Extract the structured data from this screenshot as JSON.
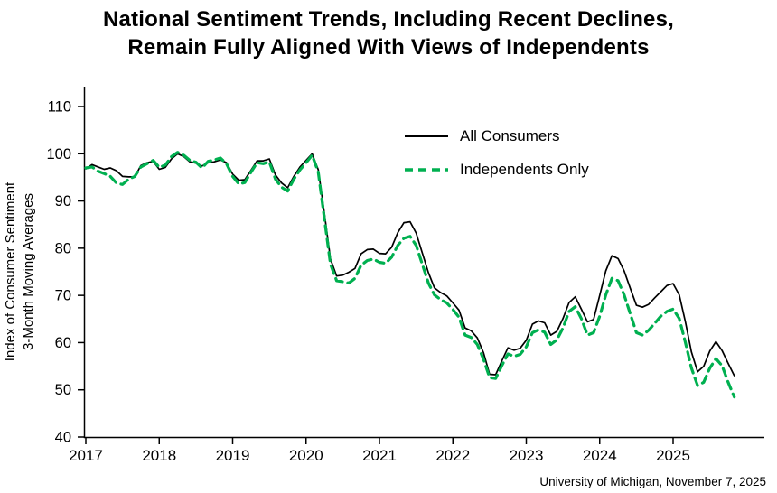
{
  "chart_data": {
    "type": "line",
    "title_line1": "National Sentiment Trends, Including Recent Declines,",
    "title_line2": "Remain Fully Aligned With Views of Independents",
    "ylabel_line1": "Index of Consumer Sentiment",
    "ylabel_line2": "3-Month Moving Averages",
    "source": "University of Michigan, November 7, 2025",
    "x_ticks": [
      2017,
      2018,
      2019,
      2020,
      2021,
      2022,
      2023,
      2024,
      2025
    ],
    "y_ticks": [
      40,
      50,
      60,
      70,
      80,
      90,
      100,
      110
    ],
    "ylim": [
      40,
      110
    ],
    "xlim": [
      2017,
      2026.2
    ],
    "x_start": 2017.0,
    "x_interval": "monthly",
    "grid": false,
    "legend_position": "inside-upper-right",
    "series": [
      {
        "name": "All Consumers",
        "color": "#000000",
        "style": "solid",
        "dash": "",
        "width": 1.7,
        "values": [
          96.8,
          97.7,
          97.2,
          96.7,
          97.0,
          96.4,
          95.2,
          95.1,
          95.1,
          97.5,
          98.1,
          98.4,
          96.7,
          97.1,
          98.9,
          100.0,
          99.4,
          98.3,
          98.0,
          97.4,
          98.1,
          98.3,
          98.7,
          98.1,
          95.7,
          94.4,
          94.5,
          96.5,
          98.5,
          98.5,
          98.9,
          95.5,
          93.8,
          92.8,
          95.2,
          97.2,
          98.6,
          100.0,
          96.6,
          87.3,
          77.7,
          74.1,
          74.3,
          74.9,
          75.7,
          78.8,
          79.7,
          79.8,
          78.9,
          78.8,
          80.2,
          83.3,
          85.4,
          85.6,
          83.2,
          79.0,
          74.8,
          71.6,
          70.6,
          69.9,
          68.4,
          66.9,
          63.1,
          62.5,
          61.0,
          57.9,
          53.3,
          53.2,
          56.1,
          58.9,
          58.4,
          58.8,
          60.5,
          63.9,
          64.6,
          64.2,
          61.6,
          62.4,
          65.1,
          68.5,
          69.7,
          67.1,
          64.4,
          64.9,
          70.0,
          75.2,
          78.4,
          77.8,
          75.2,
          71.5,
          67.9,
          67.5,
          68.1,
          69.5,
          70.8,
          72.1,
          72.5,
          70.1,
          64.5,
          58.0,
          53.8,
          55.0,
          58.2,
          60.2,
          58.3,
          55.6,
          53.0
        ]
      },
      {
        "name": "Independents Only",
        "color": "#00B050",
        "style": "dashed",
        "dash": "9,6",
        "width": 3.2,
        "values": [
          97.0,
          97.2,
          96.3,
          95.8,
          95.2,
          93.8,
          93.5,
          94.6,
          95.2,
          97.2,
          97.9,
          98.6,
          97.1,
          97.6,
          99.4,
          100.3,
          99.7,
          98.6,
          98.2,
          97.0,
          98.4,
          98.7,
          99.1,
          97.9,
          95.2,
          93.6,
          93.9,
          96.1,
          98.1,
          97.9,
          98.3,
          94.6,
          92.9,
          92.1,
          94.6,
          96.6,
          98.1,
          99.7,
          96.1,
          86.2,
          76.6,
          73.1,
          72.9,
          72.6,
          73.6,
          76.4,
          77.4,
          77.7,
          77.0,
          76.8,
          78.1,
          80.6,
          82.1,
          82.5,
          80.6,
          76.6,
          72.6,
          70.1,
          69.1,
          68.4,
          67.0,
          65.4,
          61.6,
          61.1,
          59.6,
          56.5,
          52.6,
          52.4,
          55.1,
          57.6,
          57.1,
          57.5,
          59.1,
          62.1,
          62.7,
          62.2,
          59.6,
          60.6,
          63.1,
          66.6,
          67.6,
          65.1,
          61.6,
          62.1,
          65.6,
          70.1,
          73.6,
          73.1,
          70.1,
          66.1,
          62.1,
          61.6,
          62.6,
          64.1,
          65.6,
          66.6,
          67.1,
          65.1,
          60.1,
          54.6,
          50.9,
          51.6,
          54.6,
          56.6,
          55.1,
          51.6,
          48.5
        ]
      }
    ]
  }
}
